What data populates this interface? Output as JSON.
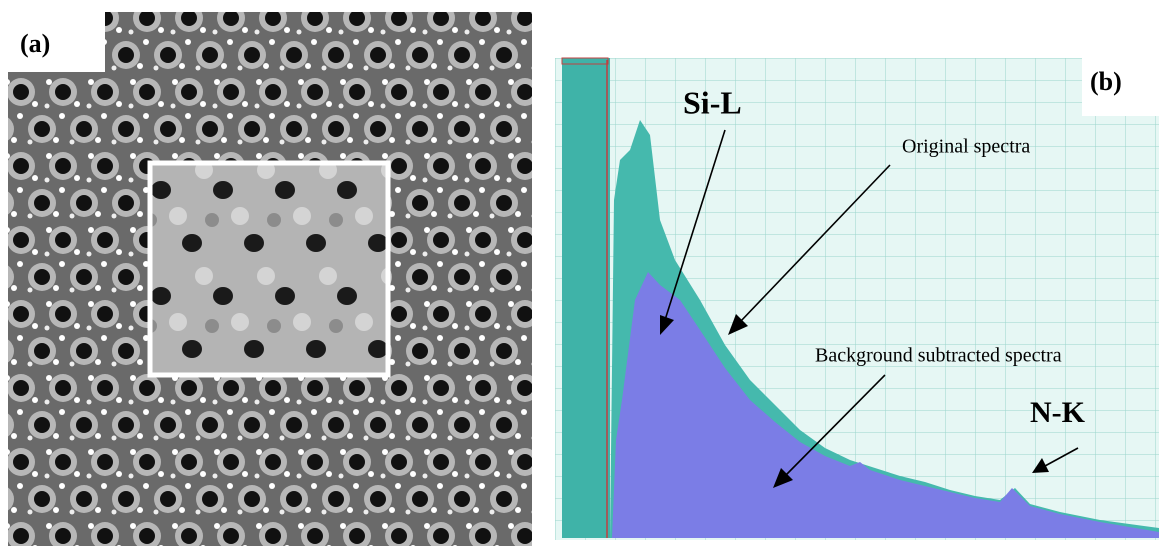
{
  "panel_a": {
    "label": "(a)"
  },
  "panel_b": {
    "label": "(b)",
    "peaks": {
      "si": "Si-L",
      "n": "N-K"
    },
    "annotations": {
      "original": "Original spectra",
      "subtracted": "Background subtracted spectra"
    }
  }
}
